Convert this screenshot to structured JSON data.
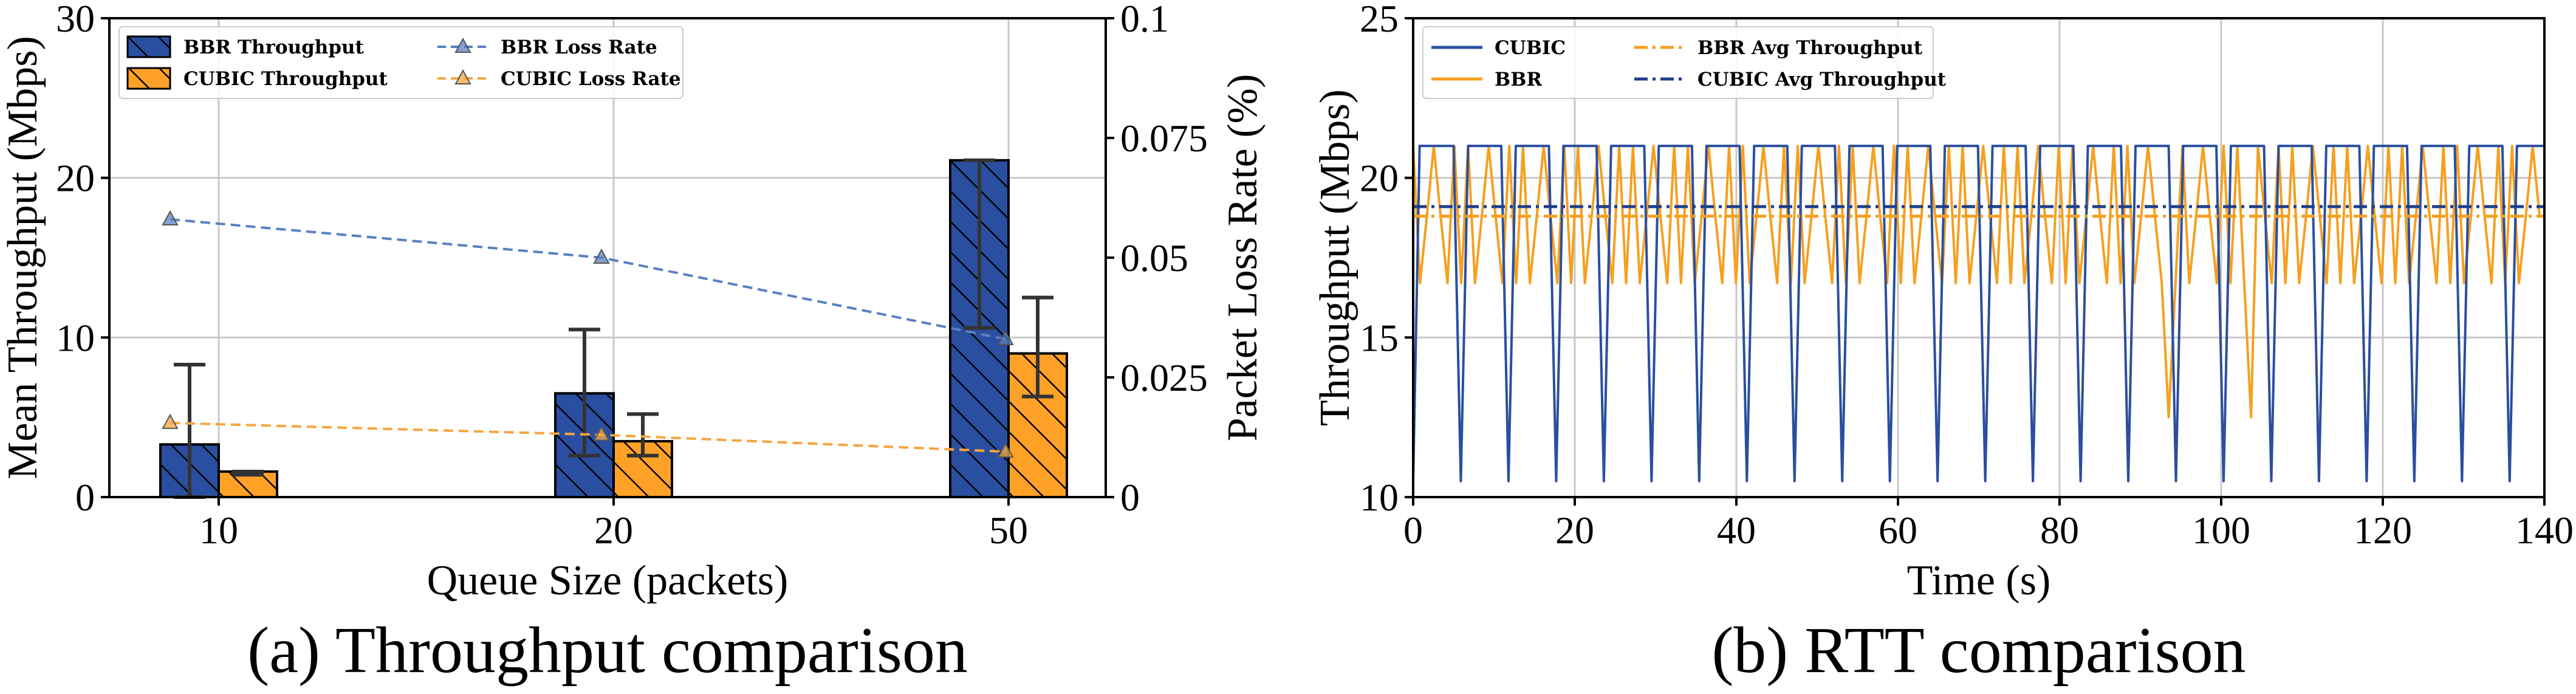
{
  "chart_data": [
    {
      "type": "bar",
      "panel": "a",
      "caption": "(a) Throughput comparison",
      "xlabel": "Queue Size (packets)",
      "ylabel": "Mean Throughput (Mbps)",
      "y2label": "Packet Loss Rate (%)",
      "categories": [
        "10",
        "20",
        "50"
      ],
      "ylim": [
        0,
        30
      ],
      "yticks": [
        "0",
        "10",
        "20",
        "30"
      ],
      "y2lim": [
        0,
        0.1
      ],
      "y2ticks": [
        "0",
        "0.025",
        "0.05",
        "0.075",
        "0.1"
      ],
      "series": [
        {
          "name": "BBR Throughput",
          "kind": "bar",
          "color": "#2a4fa0",
          "values": [
            3.3,
            6.5,
            21.1
          ],
          "err_low": [
            0,
            2.6,
            10.6
          ],
          "err_high": [
            8.3,
            10.5,
            21.1
          ]
        },
        {
          "name": "CUBIC Throughput",
          "kind": "bar",
          "color": "#ffa126",
          "values": [
            1.6,
            3.5,
            9.0
          ],
          "err_low": [
            1.4,
            2.6,
            6.3
          ],
          "err_high": [
            1.6,
            5.2,
            12.5
          ]
        },
        {
          "name": "BBR Loss Rate",
          "kind": "line",
          "axis": "right",
          "color": "#5a80c2",
          "values": [
            0.058,
            0.05,
            0.033
          ]
        },
        {
          "name": "CUBIC Loss Rate",
          "kind": "line",
          "axis": "right",
          "color": "#f5a540",
          "values": [
            0.0155,
            0.013,
            0.0095
          ]
        }
      ]
    },
    {
      "type": "line",
      "panel": "b",
      "caption": "(b) RTT comparison",
      "xlabel": "Time (s)",
      "ylabel": "Throughput (Mbps)",
      "xlim": [
        0,
        140
      ],
      "xticks": [
        "0",
        "20",
        "40",
        "60",
        "80",
        "100",
        "120",
        "140"
      ],
      "ylim": [
        10,
        25
      ],
      "yticks": [
        "10",
        "15",
        "20",
        "25"
      ],
      "series": [
        {
          "name": "CUBIC",
          "color": "#2a4fa0",
          "pattern": "sawtooth",
          "period_s": 5.9,
          "high": 21.0,
          "low": 10.5
        },
        {
          "name": "BBR",
          "color": "#f5a020",
          "pattern": "oscillating",
          "high": 21.0,
          "mid": 18.8,
          "low": 16.7,
          "dips": [
            {
              "t": 93.5,
              "value": 12.5
            },
            {
              "t": 103.5,
              "value": 12.5
            }
          ]
        },
        {
          "name": "BBR Avg Throughput",
          "color": "#f5a020",
          "style": "dash-dot",
          "value": 18.8
        },
        {
          "name": "CUBIC Avg Throughput",
          "color": "#1f3f88",
          "style": "dash-dot",
          "value": 19.1
        }
      ]
    }
  ]
}
